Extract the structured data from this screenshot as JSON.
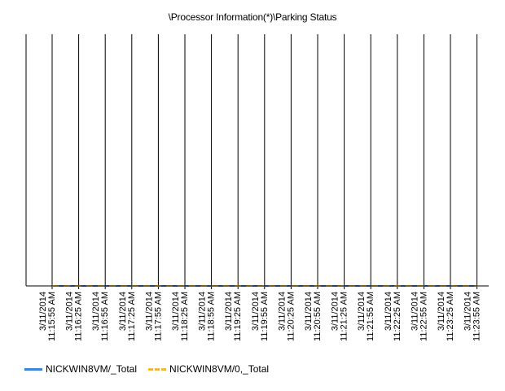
{
  "chart_data": {
    "type": "line",
    "title": "\\Processor Information(*)\\Parking Status",
    "xlabel": "",
    "ylabel": "",
    "grid": "vertical",
    "legend_position": "bottom-left",
    "categories": [
      "3/11/2014 11:15:55 AM",
      "3/11/2014 11:16:25 AM",
      "3/11/2014 11:16:55 AM",
      "3/11/2014 11:17:25 AM",
      "3/11/2014 11:17:55 AM",
      "3/11/2014 11:18:25 AM",
      "3/11/2014 11:18:55 AM",
      "3/11/2014 11:19:25 AM",
      "3/11/2014 11:19:55 AM",
      "3/11/2014 11:20:25 AM",
      "3/11/2014 11:20:55 AM",
      "3/11/2014 11:21:25 AM",
      "3/11/2014 11:21:55 AM",
      "3/11/2014 11:22:25 AM",
      "3/11/2014 11:22:55 AM",
      "3/11/2014 11:23:25 AM",
      "3/11/2014 11:23:55 AM"
    ],
    "series": [
      {
        "name": "NICKWIN8VM/_Total",
        "color": "#3b86d6",
        "style": "solid",
        "values": [
          0,
          0,
          0,
          0,
          0,
          0,
          0,
          0,
          0,
          0,
          0,
          0,
          0,
          0,
          0,
          0,
          0
        ]
      },
      {
        "name": "NICKWIN8VM/0,_Total",
        "color": "#f5b83c",
        "style": "dashed",
        "values": [
          0,
          0,
          0,
          0,
          0,
          0,
          0,
          0,
          0,
          0,
          0,
          0,
          0,
          0,
          0,
          0,
          0
        ]
      }
    ],
    "ylim": [
      0,
      1
    ]
  }
}
